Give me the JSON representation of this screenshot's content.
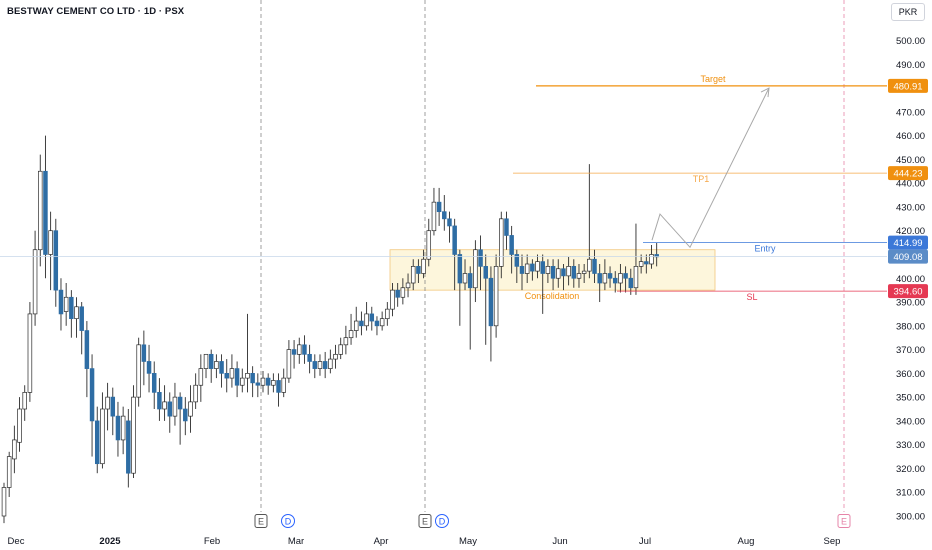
{
  "header": {
    "title": "BESTWAY CEMENT CO LTD · 1D · PSX",
    "currency": "PKR"
  },
  "colors": {
    "up": "#ffffff",
    "down": "#2e6da4",
    "wick": "#2b2b2b",
    "target": "#f0900f",
    "tp1": "#f5a84a",
    "entry": "#3c78d8",
    "current": "#5b8cc7",
    "sl": "#e53953",
    "consolidation_fill": "#fdf6dc",
    "consolidation_border": "#f2c77c",
    "consolidation_text": "#f0900f",
    "event_line": "#888888",
    "event_line_future": "#e684a8"
  },
  "chart_data": {
    "type": "candlestick",
    "symbol": "BESTWAY CEMENT CO LTD",
    "interval": "1D",
    "exchange": "PSX",
    "currency": "PKR",
    "ylim": [
      296,
      510
    ],
    "y_ticks": [
      300,
      310,
      320,
      330,
      340,
      350,
      360,
      370,
      380,
      390,
      400,
      410,
      420,
      430,
      440,
      450,
      460,
      470,
      480,
      490,
      500
    ],
    "x_ticks": [
      {
        "label": "Dec",
        "bold": false
      },
      {
        "label": "2025",
        "bold": true
      },
      {
        "label": "Feb",
        "bold": false
      },
      {
        "label": "Mar",
        "bold": false
      },
      {
        "label": "Apr",
        "bold": false
      },
      {
        "label": "May",
        "bold": false
      },
      {
        "label": "Jun",
        "bold": false
      },
      {
        "label": "Jul",
        "bold": false
      },
      {
        "label": "Aug",
        "bold": false
      },
      {
        "label": "Sep",
        "bold": false
      }
    ],
    "candles": [
      [
        300,
        312,
        297,
        314
      ],
      [
        312,
        325,
        308,
        327
      ],
      [
        324,
        332,
        318,
        338
      ],
      [
        331,
        345,
        327,
        350
      ],
      [
        345,
        352,
        340,
        355
      ],
      [
        352,
        385,
        348,
        390
      ],
      [
        385,
        412,
        380,
        420
      ],
      [
        412,
        445,
        405,
        452
      ],
      [
        445,
        410,
        400,
        460
      ],
      [
        410,
        420,
        395,
        428
      ],
      [
        420,
        395,
        388,
        425
      ],
      [
        395,
        385,
        378,
        400
      ],
      [
        386,
        392,
        380,
        398
      ],
      [
        392,
        383,
        375,
        395
      ],
      [
        383,
        388,
        375,
        392
      ],
      [
        388,
        378,
        368,
        390
      ],
      [
        378,
        362,
        350,
        382
      ],
      [
        362,
        340,
        325,
        368
      ],
      [
        340,
        322,
        318,
        346
      ],
      [
        322,
        345,
        320,
        352
      ],
      [
        345,
        350,
        336,
        356
      ],
      [
        350,
        342,
        334,
        354
      ],
      [
        342,
        332,
        325,
        348
      ],
      [
        332,
        342,
        326,
        346
      ],
      [
        340,
        318,
        312,
        345
      ],
      [
        318,
        350,
        316,
        355
      ],
      [
        350,
        372,
        346,
        375
      ],
      [
        372,
        365,
        355,
        378
      ],
      [
        365,
        360,
        352,
        372
      ],
      [
        360,
        352,
        345,
        365
      ],
      [
        352,
        345,
        340,
        358
      ],
      [
        345,
        348,
        340,
        355
      ],
      [
        348,
        342,
        335,
        352
      ],
      [
        342,
        350,
        338,
        356
      ],
      [
        350,
        345,
        330,
        352
      ],
      [
        345,
        340,
        334,
        350
      ],
      [
        342,
        348,
        335,
        355
      ],
      [
        348,
        355,
        345,
        360
      ],
      [
        355,
        362,
        348,
        368
      ],
      [
        362,
        368,
        358,
        366
      ],
      [
        368,
        362,
        356,
        370
      ],
      [
        362,
        365,
        358,
        368
      ],
      [
        365,
        360,
        354,
        368
      ],
      [
        360,
        358,
        352,
        366
      ],
      [
        358,
        362,
        354,
        368
      ],
      [
        362,
        355,
        350,
        365
      ],
      [
        355,
        358,
        352,
        362
      ],
      [
        358,
        360,
        352,
        385
      ],
      [
        360,
        356,
        350,
        363
      ],
      [
        356,
        355,
        350,
        360
      ],
      [
        355,
        358,
        352,
        361
      ],
      [
        358,
        355,
        351,
        360
      ],
      [
        355,
        357,
        352,
        360
      ],
      [
        357,
        352,
        346,
        360
      ],
      [
        352,
        358,
        350,
        362
      ],
      [
        358,
        370,
        356,
        374
      ],
      [
        370,
        368,
        362,
        374
      ],
      [
        368,
        372,
        364,
        375
      ],
      [
        372,
        368,
        364,
        376
      ],
      [
        368,
        365,
        360,
        372
      ],
      [
        365,
        362,
        358,
        368
      ],
      [
        362,
        365,
        359,
        368
      ],
      [
        365,
        362,
        358,
        369
      ],
      [
        362,
        366,
        360,
        370
      ],
      [
        366,
        368,
        362,
        372
      ],
      [
        368,
        372,
        366,
        375
      ],
      [
        372,
        375,
        368,
        380
      ],
      [
        375,
        378,
        372,
        385
      ],
      [
        378,
        382,
        375,
        388
      ],
      [
        382,
        380,
        376,
        386
      ],
      [
        380,
        385,
        378,
        390
      ],
      [
        385,
        382,
        378,
        388
      ],
      [
        382,
        380,
        376,
        384
      ],
      [
        380,
        383,
        378,
        386
      ],
      [
        383,
        387,
        380,
        390
      ],
      [
        387,
        395,
        384,
        398
      ],
      [
        395,
        392,
        388,
        398
      ],
      [
        392,
        396,
        389,
        400
      ],
      [
        396,
        398,
        392,
        402
      ],
      [
        398,
        405,
        395,
        408
      ],
      [
        405,
        402,
        398,
        408
      ],
      [
        402,
        408,
        400,
        412
      ],
      [
        408,
        420,
        405,
        425
      ],
      [
        420,
        432,
        418,
        438
      ],
      [
        432,
        428,
        422,
        438
      ],
      [
        428,
        425,
        420,
        435
      ],
      [
        425,
        422,
        415,
        428
      ],
      [
        422,
        410,
        395,
        425
      ],
      [
        410,
        398,
        380,
        412
      ],
      [
        398,
        402,
        395,
        408
      ],
      [
        402,
        396,
        370,
        405
      ],
      [
        396,
        412,
        390,
        416
      ],
      [
        412,
        405,
        395,
        418
      ],
      [
        405,
        400,
        372,
        410
      ],
      [
        400,
        380,
        365,
        405
      ],
      [
        380,
        405,
        375,
        410
      ],
      [
        405,
        425,
        400,
        428
      ],
      [
        425,
        418,
        412,
        428
      ],
      [
        418,
        410,
        402,
        422
      ],
      [
        410,
        405,
        398,
        412
      ],
      [
        405,
        402,
        395,
        410
      ],
      [
        402,
        406,
        398,
        410
      ],
      [
        406,
        403,
        399,
        408
      ],
      [
        403,
        407,
        400,
        410
      ],
      [
        407,
        402,
        385,
        410
      ],
      [
        402,
        405,
        398,
        408
      ],
      [
        405,
        400,
        395,
        408
      ],
      [
        400,
        404,
        396,
        408
      ],
      [
        404,
        401,
        395,
        406
      ],
      [
        401,
        405,
        397,
        409
      ],
      [
        405,
        400,
        396,
        408
      ],
      [
        400,
        402,
        396,
        406
      ],
      [
        402,
        403,
        398,
        406
      ],
      [
        403,
        408,
        400,
        448
      ],
      [
        408,
        402,
        398,
        412
      ],
      [
        402,
        398,
        390,
        406
      ],
      [
        398,
        402,
        395,
        408
      ],
      [
        402,
        400,
        396,
        405
      ],
      [
        400,
        398,
        394,
        403
      ],
      [
        398,
        402,
        394,
        406
      ],
      [
        402,
        400,
        394,
        405
      ],
      [
        400,
        396,
        393,
        404
      ],
      [
        396,
        405,
        393,
        423
      ],
      [
        405,
        407,
        402,
        410
      ],
      [
        407,
        406,
        402,
        410
      ],
      [
        406,
        410,
        404,
        414
      ],
      [
        410,
        409,
        405,
        415
      ]
    ],
    "levels": [
      {
        "name": "Target",
        "label": "Target",
        "value": 480.91,
        "tag": "480.91"
      },
      {
        "name": "TP1",
        "label": "TP1",
        "value": 444.23,
        "tag": "444.23"
      },
      {
        "name": "Entry",
        "label": "Entry",
        "value": 414.99,
        "tag": "414.99"
      },
      {
        "name": "Current",
        "value": 409.08,
        "tag": "409.08"
      },
      {
        "name": "SL",
        "label": "SL",
        "value": 394.6,
        "tag": "394.60"
      }
    ],
    "consolidation": {
      "label": "Consolidation",
      "top": 412,
      "bottom": 395
    },
    "events": [
      "E",
      "D",
      "E",
      "D",
      "E"
    ],
    "projection_path": [
      {
        "price": 416
      },
      {
        "price": 427
      },
      {
        "price": 413
      },
      {
        "price": 480
      }
    ]
  }
}
